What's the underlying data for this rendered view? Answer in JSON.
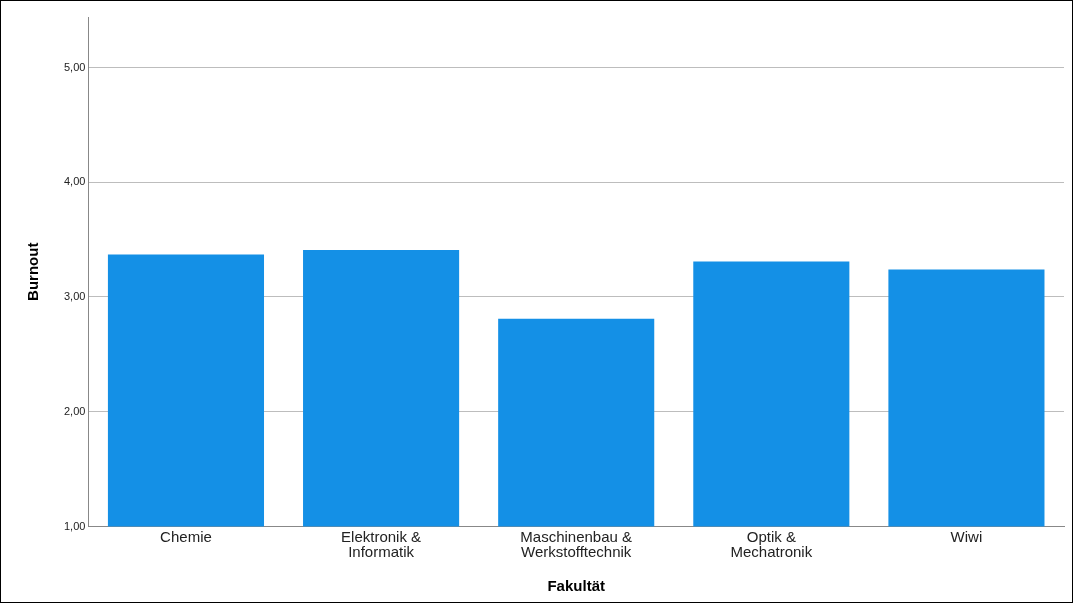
{
  "chart_data": {
    "type": "bar",
    "xlabel": "Fakultät",
    "ylabel": "Burnout",
    "categories": [
      "Chemie",
      "Elektronik & Informatik",
      "Maschinenbau & Werkstofftechnik",
      "Optik & Mechatronik",
      "Wiwi"
    ],
    "values": [
      3.37,
      3.41,
      2.81,
      3.31,
      3.24
    ],
    "color": "#1490e6",
    "ylim": [
      1,
      5.44
    ],
    "yticks": [
      {
        "value": 1,
        "label": "1,00"
      },
      {
        "value": 2,
        "label": "2,00"
      },
      {
        "value": 3,
        "label": "3,00"
      },
      {
        "value": 4,
        "label": "4,00"
      },
      {
        "value": 5,
        "label": "5,00"
      }
    ],
    "grid": "y",
    "legend": false
  }
}
